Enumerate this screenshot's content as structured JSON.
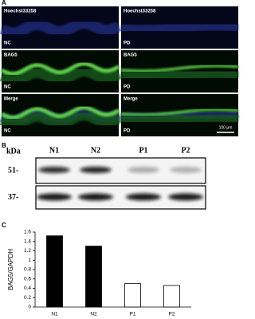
{
  "figure": {
    "panel_labels": [
      "A",
      "B",
      "C"
    ],
    "microscopy": {
      "rows": [
        "Hoechst33258",
        "BAG5",
        "Merge"
      ],
      "groups": [
        "NC",
        "PD"
      ],
      "scale_bar": "100 μm"
    },
    "blot": {
      "unit": "kDa",
      "lanes": [
        "N1",
        "N2",
        "P1",
        "P2"
      ],
      "markers": [
        "51-",
        "37-"
      ]
    }
  },
  "chart_data": {
    "type": "bar",
    "ylabel": "BAG5/GAPDH",
    "categories": [
      "N1",
      "N2",
      "P1",
      "P2"
    ],
    "values": [
      1.52,
      1.3,
      0.5,
      0.46
    ],
    "colors": [
      "#000000",
      "#000000",
      "#ffffff",
      "#ffffff"
    ],
    "ylim": [
      0,
      1.6
    ],
    "yticks": [
      0,
      0.2,
      0.4,
      0.6,
      0.8,
      1,
      1.2,
      1.4,
      1.6
    ]
  }
}
